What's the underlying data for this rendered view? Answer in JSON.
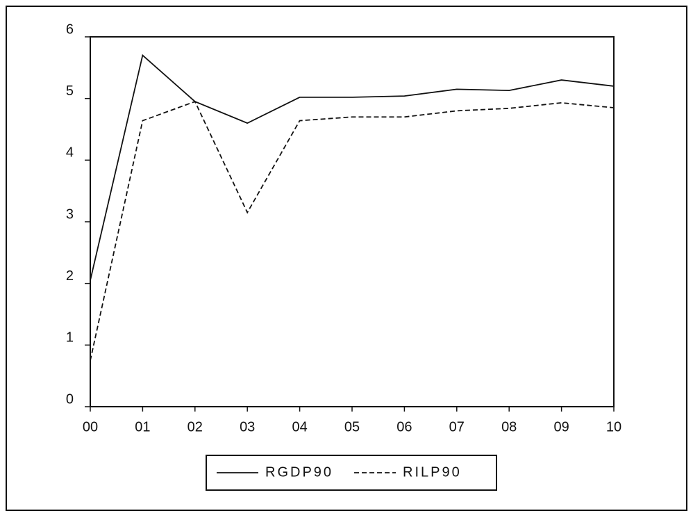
{
  "chart_data": {
    "type": "line",
    "categories": [
      "00",
      "01",
      "02",
      "03",
      "04",
      "05",
      "06",
      "07",
      "08",
      "09",
      "10"
    ],
    "series": [
      {
        "name": "RGDP90",
        "color": "#111111",
        "line_style": "solid",
        "values": [
          2.05,
          5.7,
          4.95,
          4.6,
          5.02,
          5.02,
          5.04,
          5.15,
          5.13,
          5.3,
          5.2
        ]
      },
      {
        "name": "RILP90",
        "color": "#111111",
        "line_style": "dashed",
        "values": [
          0.75,
          4.64,
          4.95,
          3.15,
          4.64,
          4.7,
          4.7,
          4.8,
          4.84,
          4.93,
          4.85
        ]
      }
    ],
    "ylim": [
      0,
      6
    ],
    "yticks": [
      0,
      1,
      2,
      3,
      4,
      5,
      6
    ],
    "grid": false,
    "legend": "bottom"
  }
}
